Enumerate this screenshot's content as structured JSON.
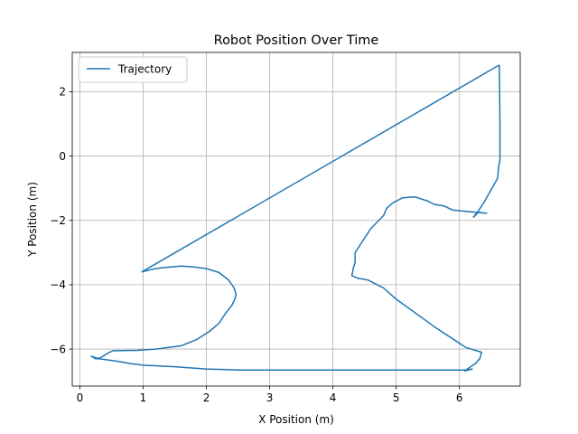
{
  "chart_data": {
    "type": "line",
    "title": "Robot Position Over Time",
    "xlabel": "X Position (m)",
    "ylabel": "Y Position (m)",
    "xlim": [
      -0.12,
      6.96
    ],
    "ylim": [
      -7.15,
      3.22
    ],
    "xticks": [
      0,
      1,
      2,
      3,
      4,
      5,
      6
    ],
    "yticks": [
      -6,
      -4,
      -2,
      0,
      2
    ],
    "grid": true,
    "legend": "top-left",
    "series": [
      {
        "name": "Trajectory",
        "color": "#1f77b4",
        "x": [
          6.63,
          6.64,
          6.64,
          6.63,
          6.62,
          6.61,
          6.6,
          6.5,
          6.4,
          6.3,
          6.22,
          6.3,
          6.43,
          6.1,
          5.9,
          5.75,
          5.6,
          5.5,
          5.3,
          5.1,
          4.95,
          4.85,
          4.8,
          4.6,
          4.5,
          4.4,
          4.35,
          4.35,
          4.32,
          4.3,
          4.4,
          4.55,
          4.7,
          4.8,
          5.0,
          5.6,
          6.1,
          6.35,
          6.32,
          6.25,
          6.15,
          6.08,
          6.2,
          6.1,
          5.0,
          4.0,
          3.0,
          2.5,
          2.0,
          1.5,
          1.0,
          0.8,
          0.6,
          0.3,
          0.18,
          0.25,
          0.32,
          0.45,
          0.52,
          0.9,
          1.2,
          1.6,
          1.85,
          2.05,
          2.2,
          2.3,
          2.4,
          2.45,
          2.47,
          2.44,
          2.35,
          2.2,
          2.0,
          1.8,
          1.6,
          1.3,
          1.15,
          0.98,
          6.63
        ],
        "y": [
          2.83,
          1.0,
          -0.1,
          -0.25,
          -0.3,
          -0.55,
          -0.7,
          -1.05,
          -1.4,
          -1.7,
          -1.9,
          -1.75,
          -1.78,
          -1.72,
          -1.68,
          -1.55,
          -1.5,
          -1.4,
          -1.27,
          -1.3,
          -1.45,
          -1.62,
          -1.85,
          -2.25,
          -2.55,
          -2.85,
          -3.0,
          -3.3,
          -3.5,
          -3.72,
          -3.8,
          -3.85,
          -4.0,
          -4.1,
          -4.45,
          -5.3,
          -5.95,
          -6.1,
          -6.3,
          -6.45,
          -6.58,
          -6.68,
          -6.62,
          -6.65,
          -6.65,
          -6.65,
          -6.65,
          -6.65,
          -6.62,
          -6.55,
          -6.5,
          -6.45,
          -6.38,
          -6.3,
          -6.22,
          -6.3,
          -6.28,
          -6.12,
          -6.05,
          -6.04,
          -6.0,
          -5.9,
          -5.7,
          -5.45,
          -5.2,
          -4.9,
          -4.65,
          -4.45,
          -4.3,
          -4.1,
          -3.85,
          -3.62,
          -3.5,
          -3.45,
          -3.42,
          -3.47,
          -3.52,
          -3.6,
          2.83
        ]
      }
    ]
  }
}
